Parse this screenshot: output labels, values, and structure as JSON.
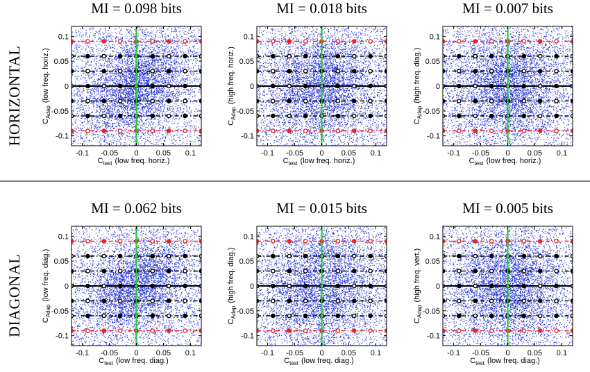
{
  "rows": [
    {
      "label": "HORIZONTAL"
    },
    {
      "label": "DIAGONAL"
    }
  ],
  "colors": {
    "scatter": "#1f2fd8",
    "red_contour": "#e8242a",
    "black_contour": "#000000",
    "green_axis": "#22cc33",
    "axes": "#000000",
    "divider": "#000000"
  },
  "chart_data": [
    {
      "type": "scatter",
      "row": 0,
      "col": 0,
      "title": "MI = 0.098 bits",
      "xlabel": {
        "main": "C",
        "sub": "test",
        "paren": "(low freq. horiz.)"
      },
      "ylabel": {
        "main": "C",
        "sub": "Adap",
        "paren": "(low freq. horiz.)"
      },
      "xlim": [
        -0.12,
        0.12
      ],
      "ylim": [
        -0.12,
        0.12
      ],
      "xticks": [
        -0.1,
        -0.05,
        0,
        0.05,
        0.1
      ],
      "xtick_labels": [
        "-0.1",
        "-0.05",
        "0",
        "0.05",
        "0.1"
      ],
      "yticks": [
        0.1,
        0.05,
        0,
        -0.05,
        -0.1
      ],
      "ytick_labels": [
        "0.1",
        "0.05",
        "0",
        "-0.05",
        "-0.1"
      ],
      "scatter_spread": {
        "x_std": 0.05,
        "y_std": 0.05,
        "correlation": 0.32
      },
      "contour_levels_y": [
        0.09,
        0.06,
        0.03,
        0,
        -0.03,
        -0.06,
        -0.09
      ],
      "contour_colors": [
        "red",
        "black",
        "black",
        "black",
        "black",
        "black",
        "red"
      ],
      "vertical_line_x": 0
    },
    {
      "type": "scatter",
      "row": 0,
      "col": 1,
      "title": "MI = 0.018 bits",
      "xlabel": {
        "main": "C",
        "sub": "test",
        "paren": "(low freq. horiz.)"
      },
      "ylabel": {
        "main": "C",
        "sub": "Adap",
        "paren": "(high freq. horiz.)"
      },
      "xlim": [
        -0.12,
        0.12
      ],
      "ylim": [
        -0.12,
        0.12
      ],
      "xticks": [
        -0.1,
        -0.05,
        0,
        0.05,
        0.1
      ],
      "xtick_labels": [
        "-0.1",
        "-0.05",
        "0",
        "0.05",
        "0.1"
      ],
      "yticks": [
        0.1,
        0.05,
        0,
        -0.05,
        -0.1
      ],
      "ytick_labels": [
        "0.1",
        "0.05",
        "0",
        "-0.05",
        "-0.1"
      ],
      "scatter_spread": {
        "x_std": 0.05,
        "y_std": 0.055,
        "correlation": 0.12
      },
      "contour_levels_y": [
        0.09,
        0.06,
        0.03,
        0,
        -0.03,
        -0.06,
        -0.09
      ],
      "contour_colors": [
        "red",
        "black",
        "black",
        "black",
        "black",
        "black",
        "red"
      ],
      "vertical_line_x": 0
    },
    {
      "type": "scatter",
      "row": 0,
      "col": 2,
      "title": "MI = 0.007 bits",
      "xlabel": {
        "main": "C",
        "sub": "test",
        "paren": "(low freq. horiz.)"
      },
      "ylabel": {
        "main": "C",
        "sub": "Adap",
        "paren": "(high freq. diag.)"
      },
      "xlim": [
        -0.12,
        0.12
      ],
      "ylim": [
        -0.12,
        0.12
      ],
      "xticks": [
        -0.1,
        -0.05,
        0,
        0.05,
        0.1
      ],
      "xtick_labels": [
        "-0.1",
        "-0.05",
        "0",
        "0.05",
        "0.1"
      ],
      "yticks": [
        0.1,
        0.05,
        0,
        -0.05,
        -0.1
      ],
      "ytick_labels": [
        "0.1",
        "0.05",
        "0",
        "-0.05",
        "-0.1"
      ],
      "scatter_spread": {
        "x_std": 0.05,
        "y_std": 0.055,
        "correlation": 0.05
      },
      "contour_levels_y": [
        0.09,
        0.06,
        0.03,
        0,
        -0.03,
        -0.06,
        -0.09
      ],
      "contour_colors": [
        "red",
        "black",
        "black",
        "black",
        "black",
        "black",
        "red"
      ],
      "vertical_line_x": 0
    },
    {
      "type": "scatter",
      "row": 1,
      "col": 0,
      "title": "MI = 0.062 bits",
      "xlabel": {
        "main": "C",
        "sub": "test",
        "paren": "(low freq. diag.)"
      },
      "ylabel": {
        "main": "C",
        "sub": "Adap",
        "paren": "(low freq. diag.)"
      },
      "xlim": [
        -0.12,
        0.12
      ],
      "ylim": [
        -0.12,
        0.12
      ],
      "xticks": [
        -0.1,
        -0.05,
        0,
        0.05,
        0.1
      ],
      "xtick_labels": [
        "-0.1",
        "-0.05",
        "0",
        "0.05",
        "0.1"
      ],
      "yticks": [
        0.1,
        0.05,
        0,
        -0.05,
        -0.1
      ],
      "ytick_labels": [
        "0.1",
        "0.05",
        "0",
        "-0.05",
        "-0.1"
      ],
      "scatter_spread": {
        "x_std": 0.05,
        "y_std": 0.05,
        "correlation": 0.28
      },
      "contour_levels_y": [
        0.09,
        0.06,
        0.03,
        0,
        -0.03,
        -0.06,
        -0.09
      ],
      "contour_colors": [
        "red",
        "black",
        "black",
        "black",
        "black",
        "black",
        "red"
      ],
      "vertical_line_x": 0
    },
    {
      "type": "scatter",
      "row": 1,
      "col": 1,
      "title": "MI = 0.015 bits",
      "xlabel": {
        "main": "C",
        "sub": "test",
        "paren": "(low freq. diag.)"
      },
      "ylabel": {
        "main": "C",
        "sub": "Adap",
        "paren": "(high freq. diag.)"
      },
      "xlim": [
        -0.12,
        0.12
      ],
      "ylim": [
        -0.12,
        0.12
      ],
      "xticks": [
        -0.1,
        -0.05,
        0,
        0.05,
        0.1
      ],
      "xtick_labels": [
        "-0.1",
        "-0.05",
        "0",
        "0.05",
        "0.1"
      ],
      "yticks": [
        0.1,
        0.05,
        0,
        -0.05,
        -0.1
      ],
      "ytick_labels": [
        "0.1",
        "0.05",
        "0",
        "-0.05",
        "-0.1"
      ],
      "scatter_spread": {
        "x_std": 0.055,
        "y_std": 0.06,
        "correlation": 0.1
      },
      "contour_levels_y": [
        0.09,
        0.06,
        0.03,
        0,
        -0.03,
        -0.06,
        -0.09
      ],
      "contour_colors": [
        "red",
        "black",
        "black",
        "black",
        "black",
        "black",
        "red"
      ],
      "vertical_line_x": 0
    },
    {
      "type": "scatter",
      "row": 1,
      "col": 2,
      "title": "MI = 0.005 bits",
      "xlabel": {
        "main": "C",
        "sub": "test",
        "paren": "(low freq. diag.)"
      },
      "ylabel": {
        "main": "C",
        "sub": "Adap",
        "paren": "(high freq. vert.)"
      },
      "xlim": [
        -0.12,
        0.12
      ],
      "ylim": [
        -0.12,
        0.12
      ],
      "xticks": [
        -0.1,
        -0.05,
        0,
        0.05,
        0.1
      ],
      "xtick_labels": [
        "-0.1",
        "-0.05",
        "0",
        "0.05",
        "0.1"
      ],
      "yticks": [
        0.1,
        0.05,
        0,
        -0.05,
        -0.1
      ],
      "ytick_labels": [
        "0.1",
        "0.05",
        "0",
        "-0.05",
        "-0.1"
      ],
      "scatter_spread": {
        "x_std": 0.05,
        "y_std": 0.055,
        "correlation": 0.04
      },
      "contour_levels_y": [
        0.09,
        0.06,
        0.03,
        0,
        -0.03,
        -0.06,
        -0.09
      ],
      "contour_colors": [
        "red",
        "black",
        "black",
        "black",
        "black",
        "black",
        "red"
      ],
      "vertical_line_x": 0
    }
  ]
}
